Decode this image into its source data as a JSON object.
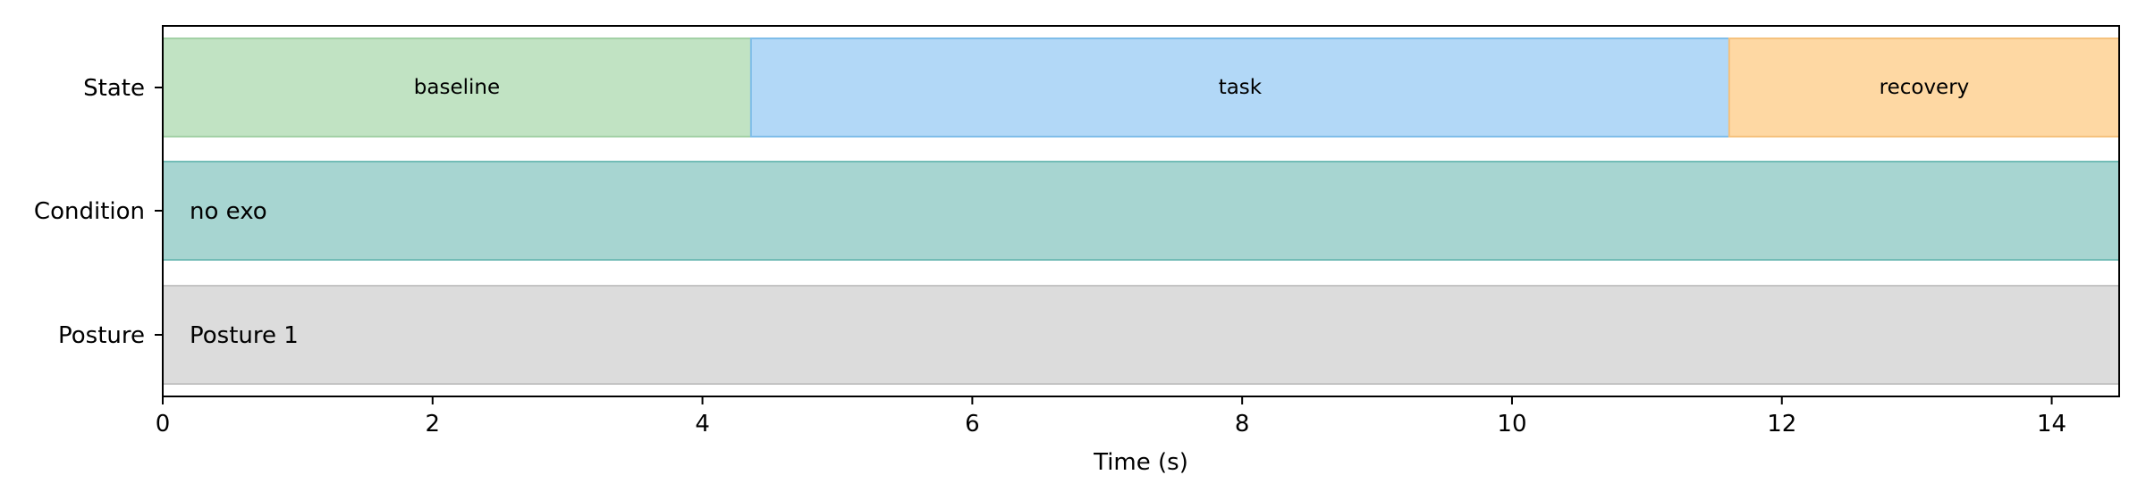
{
  "chart_data": {
    "type": "timeline",
    "xlabel": "Time (s)",
    "xlim": [
      0,
      14.5
    ],
    "xticks": [
      0,
      2,
      4,
      6,
      8,
      10,
      12,
      14
    ],
    "rows": [
      {
        "label": "State",
        "segments": [
          {
            "label": "baseline",
            "start": 0,
            "end": 4.36,
            "color": "#c1e3c3",
            "edge": "#a3d1a6"
          },
          {
            "label": "task",
            "start": 4.36,
            "end": 11.61,
            "color": "#b2d8f7",
            "edge": "#7fbde9"
          },
          {
            "label": "recovery",
            "start": 11.61,
            "end": 14.5,
            "color": "#fed8a3",
            "edge": "#f5c27e"
          }
        ]
      },
      {
        "label": "Condition",
        "segments": [
          {
            "label": "no exo",
            "start": 0,
            "end": 14.5,
            "color": "#a7d5d1",
            "edge": "#72bcb6"
          }
        ]
      },
      {
        "label": "Posture",
        "segments": [
          {
            "label": "Posture 1",
            "start": 0,
            "end": 14.5,
            "color": "#dcdcdc",
            "edge": "#c4c4c4"
          }
        ]
      }
    ]
  }
}
